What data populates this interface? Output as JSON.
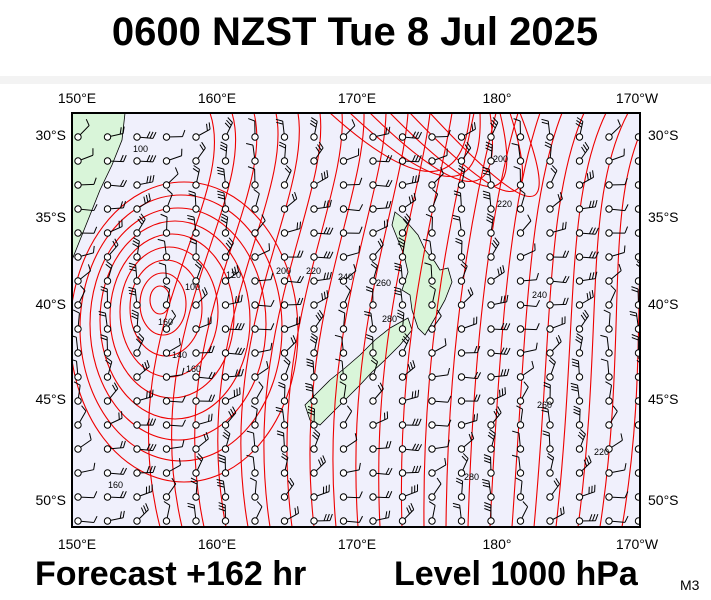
{
  "header": {
    "title": "0600 NZST Tue 8 Jul 2025"
  },
  "map": {
    "top_labels": [
      "150°E",
      "160°E",
      "170°E",
      "180°",
      "170°W"
    ],
    "bottom_labels": [
      "150°E",
      "160°E",
      "170°E",
      "180°",
      "170°W"
    ],
    "left_labels": [
      "30°S",
      "35°S",
      "40°S",
      "45°S",
      "50°S"
    ],
    "right_labels": [
      "30°S",
      "35°S",
      "40°S",
      "45°S",
      "50°S"
    ],
    "contour_labels": [
      "100",
      "120",
      "100",
      "160",
      "140",
      "160",
      "200",
      "220",
      "240",
      "260",
      "280",
      "200",
      "220",
      "240",
      "260",
      "220",
      "280",
      "160"
    ]
  },
  "footer": {
    "forecast": "Forecast +162 hr",
    "level": "Level 1000 hPa",
    "model": "M3"
  }
}
